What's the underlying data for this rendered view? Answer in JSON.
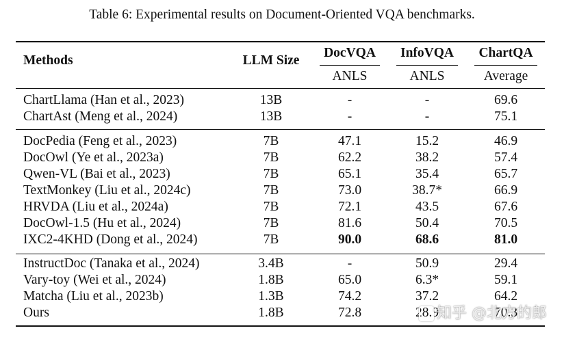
{
  "caption": "Table 6: Experimental results on Document-Oriented VQA benchmarks.",
  "header": {
    "methods": "Methods",
    "llm_size": "LLM Size",
    "docvqa": "DocVQA",
    "infovqa": "InfoVQA",
    "chartqa": "ChartQA",
    "docvqa_metric": "ANLS",
    "infovqa_metric": "ANLS",
    "chartqa_metric": "Average"
  },
  "groups": [
    {
      "rows": [
        {
          "method": "ChartLlama (Han et al., 2023)",
          "llm": "13B",
          "docvqa": "-",
          "infovqa": "-",
          "chartqa": "69.6"
        },
        {
          "method": "ChartAst (Meng et al., 2024)",
          "llm": "13B",
          "docvqa": "-",
          "infovqa": "-",
          "chartqa": "75.1"
        }
      ]
    },
    {
      "rows": [
        {
          "method": "DocPedia (Feng et al., 2023)",
          "llm": "7B",
          "docvqa": "47.1",
          "infovqa": "15.2",
          "chartqa": "46.9"
        },
        {
          "method": "DocOwl (Ye et al., 2023a)",
          "llm": "7B",
          "docvqa": "62.2",
          "infovqa": "38.2",
          "chartqa": "57.4"
        },
        {
          "method": "Qwen-VL (Bai et al., 2023)",
          "llm": "7B",
          "docvqa": "65.1",
          "infovqa": "35.4",
          "chartqa": "65.7"
        },
        {
          "method": "TextMonkey (Liu et al., 2024c)",
          "llm": "7B",
          "docvqa": "73.0",
          "infovqa": "38.7*",
          "chartqa": "66.9"
        },
        {
          "method": "HRVDA (Liu et al., 2024a)",
          "llm": "7B",
          "docvqa": "72.1",
          "infovqa": "43.5",
          "chartqa": "67.6"
        },
        {
          "method": "DocOwl-1.5 (Hu et al., 2024)",
          "llm": "7B",
          "docvqa": "81.6",
          "infovqa": "50.4",
          "chartqa": "70.5"
        },
        {
          "method": "IXC2-4KHD (Dong et al., 2024)",
          "llm": "7B",
          "docvqa": "90.0",
          "infovqa": "68.6",
          "chartqa": "81.0"
        }
      ]
    },
    {
      "rows": [
        {
          "method": "InstructDoc (Tanaka et al., 2024)",
          "llm": "3.4B",
          "docvqa": "-",
          "infovqa": "50.9",
          "chartqa": "29.4"
        },
        {
          "method": "Vary-toy (Wei et al., 2024)",
          "llm": "1.8B",
          "docvqa": "65.0",
          "infovqa": "6.3*",
          "chartqa": "59.1"
        },
        {
          "method": "Matcha (Liu et al., 2023b)",
          "llm": "1.3B",
          "docvqa": "74.2",
          "infovqa": "37.2",
          "chartqa": "64.2"
        },
        {
          "method": "Ours",
          "llm": "1.8B",
          "docvqa": "72.8",
          "infovqa": "28.9",
          "chartqa": "70.3"
        }
      ]
    }
  ],
  "watermark": "知乎 @北方的郎"
}
